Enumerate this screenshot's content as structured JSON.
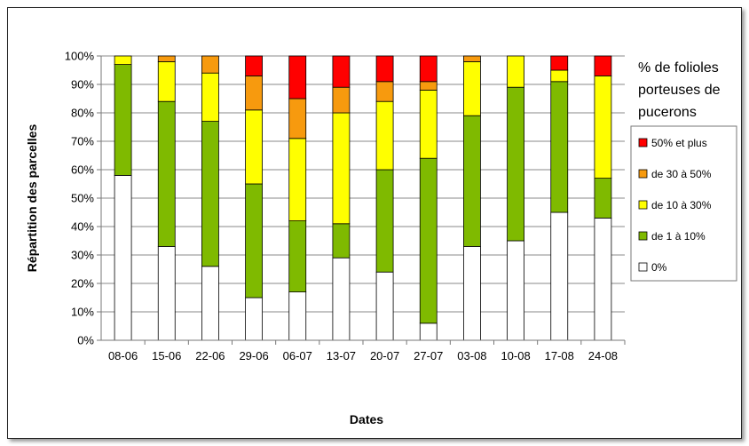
{
  "chart_data": {
    "type": "bar",
    "stacked": true,
    "title": "",
    "xlabel": "Dates",
    "ylabel": "Répartition des parcelles",
    "ylim": [
      0,
      100
    ],
    "y_ticks": [
      "0%",
      "10%",
      "20%",
      "30%",
      "40%",
      "50%",
      "60%",
      "70%",
      "80%",
      "90%",
      "100%"
    ],
    "categories": [
      "08-06",
      "15-06",
      "22-06",
      "29-06",
      "06-07",
      "13-07",
      "20-07",
      "27-07",
      "03-08",
      "10-08",
      "17-08",
      "24-08"
    ],
    "series": [
      {
        "name": "0%",
        "color": "#ffffff",
        "values": [
          58,
          33,
          26,
          15,
          17,
          29,
          24,
          6,
          33,
          35,
          45,
          43
        ]
      },
      {
        "name": "de 1 à 10%",
        "color": "#7fba00",
        "values": [
          39,
          51,
          51,
          40,
          25,
          12,
          36,
          58,
          46,
          54,
          46,
          14
        ]
      },
      {
        "name": "de 10 à 30%",
        "color": "#ffff00",
        "values": [
          3,
          14,
          17,
          26,
          29,
          39,
          24,
          24,
          19,
          11,
          4,
          36
        ]
      },
      {
        "name": "de 30 à 50%",
        "color": "#f79a0e",
        "values": [
          0,
          2,
          6,
          12,
          14,
          9,
          7,
          3,
          2,
          0,
          0,
          0
        ]
      },
      {
        "name": "50% et plus",
        "color": "#ff0000",
        "values": [
          0,
          0,
          0,
          7,
          15,
          11,
          9,
          9,
          0,
          0,
          5,
          7
        ]
      }
    ],
    "legend": {
      "title_lines": [
        "% de folioles",
        "porteuses de",
        "pucerons"
      ],
      "position": "right",
      "order": [
        "50% et plus",
        "de 30 à 50%",
        "de 10 à 30%",
        "de 1 à 10%",
        "0%"
      ]
    },
    "grid": true
  }
}
